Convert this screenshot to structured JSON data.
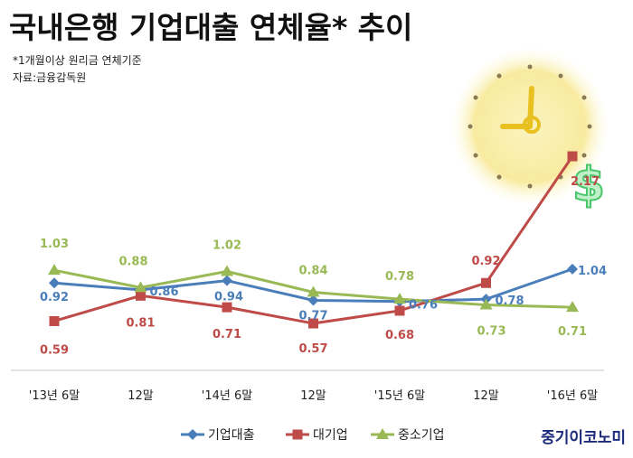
{
  "title": "국내은행 기업대출 연체율* 추이",
  "notes": [
    "*1개월이상 원리금 연체기준",
    "자료:금융감독원"
  ],
  "brand": "중기이코노미",
  "chart_data": {
    "type": "line",
    "categories": [
      "'13년 6말",
      "12말",
      "'14년 6말",
      "12말",
      "'15년 6말",
      "12말",
      "'16년 6말"
    ],
    "series": [
      {
        "name": "기업대출",
        "color": "#4a7ebb",
        "marker": "diamond",
        "values": [
          0.92,
          0.86,
          0.94,
          0.77,
          0.76,
          0.78,
          1.04
        ],
        "labels": [
          "0.92",
          "0.86",
          "0.94",
          "0.77",
          "0.76",
          "0.78",
          "1.04"
        ]
      },
      {
        "name": "대기업",
        "color": "#be4b48",
        "marker": "square",
        "values": [
          0.59,
          0.81,
          0.71,
          0.57,
          0.68,
          0.92,
          2.17
        ],
        "labels": [
          "0.59",
          "0.81",
          "0.71",
          "0.57",
          "0.68",
          "0.92",
          "2.17"
        ]
      },
      {
        "name": "중소기업",
        "color": "#98b954",
        "marker": "triangle",
        "values": [
          1.03,
          0.88,
          1.02,
          0.84,
          0.78,
          0.73,
          0.71
        ],
        "labels": [
          "1.03",
          "0.88",
          "1.02",
          "0.84",
          "0.78",
          "0.73",
          "0.71"
        ]
      }
    ],
    "legend_position": "bottom",
    "grid": false,
    "decorations": [
      "clock-icon",
      "dollar-icon"
    ]
  }
}
